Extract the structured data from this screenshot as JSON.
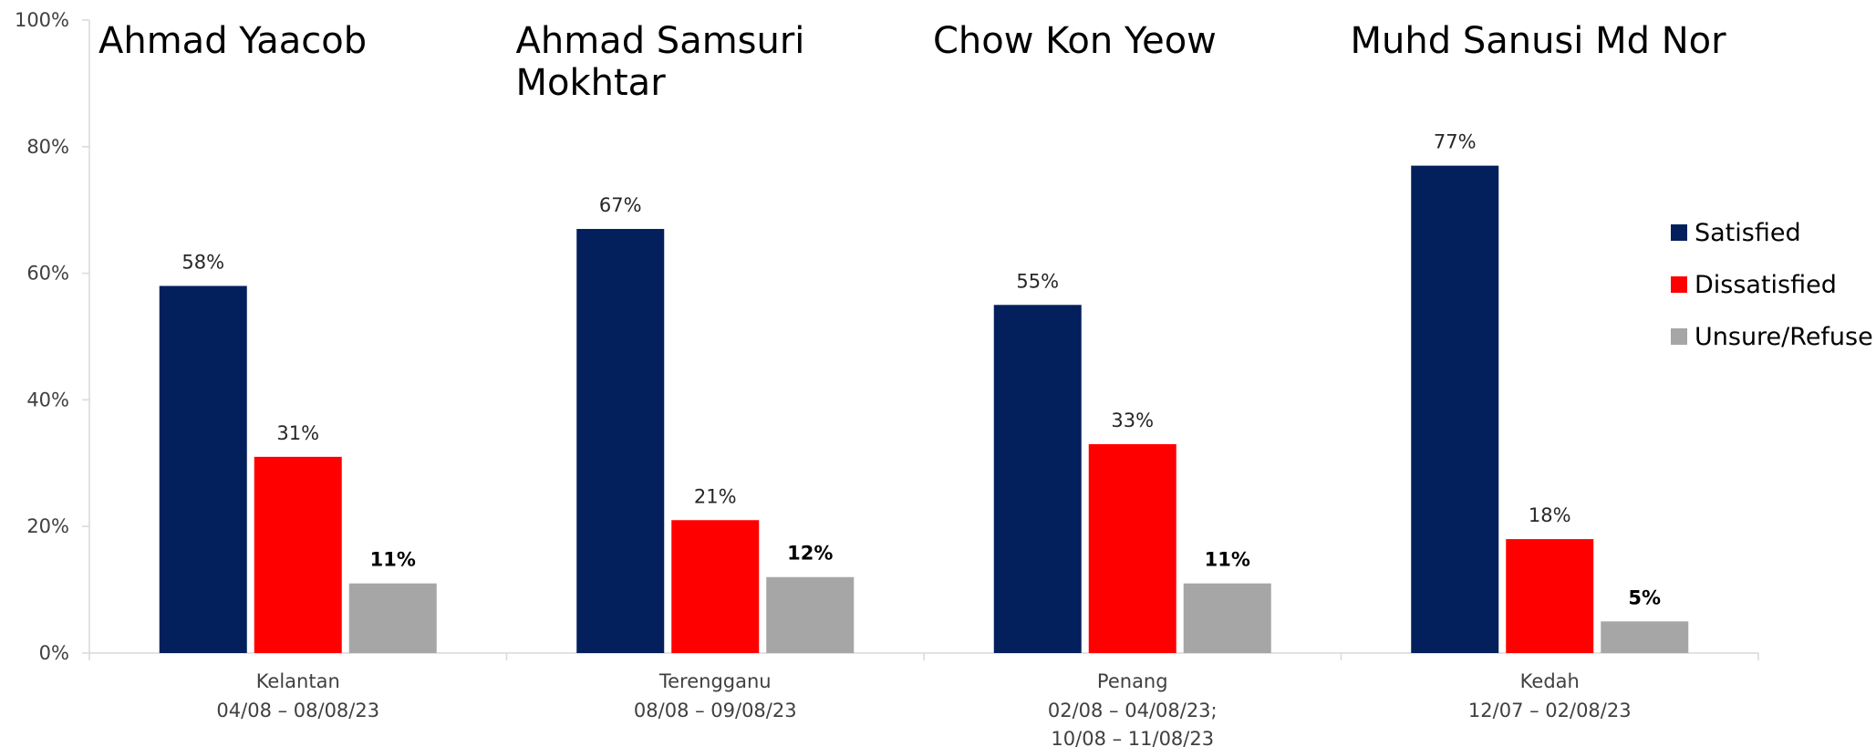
{
  "chart_data": {
    "type": "bar",
    "categories": [
      {
        "person": "Ahmad Yaacob",
        "state": "Kelantan",
        "dates": [
          "04/08 – 08/08/23"
        ]
      },
      {
        "person": "Ahmad Samsuri Mokhtar",
        "state": "Terengganu",
        "dates": [
          "08/08 – 09/08/23"
        ]
      },
      {
        "person": "Chow Kon Yeow",
        "state": "Penang",
        "dates": [
          "02/08 – 04/08/23;",
          "10/08 – 11/08/23"
        ]
      },
      {
        "person": "Muhd Sanusi Md Nor",
        "state": "Kedah",
        "dates": [
          "12/07 – 02/08/23"
        ]
      }
    ],
    "series": [
      {
        "name": "Satisfied",
        "color": "#03205d",
        "values": [
          58,
          67,
          55,
          77
        ],
        "labels": [
          "58%",
          "67%",
          "55%",
          "77%"
        ],
        "label_bold": false
      },
      {
        "name": "Dissatisfied",
        "color": "#ff0000",
        "values": [
          31,
          21,
          33,
          18
        ],
        "labels": [
          "31%",
          "21%",
          "33%",
          "18%"
        ],
        "label_bold": false
      },
      {
        "name": "Unsure/Refuse",
        "color": "#a6a6a6",
        "values": [
          11,
          12,
          11,
          5
        ],
        "labels": [
          "11%",
          "12%",
          "11%",
          "5%"
        ],
        "label_bold": true
      }
    ],
    "ylim": [
      0,
      100
    ],
    "yticks": [
      "0%",
      "20%",
      "40%",
      "60%",
      "80%",
      "100%"
    ],
    "grid": false,
    "legend_position": "right"
  }
}
